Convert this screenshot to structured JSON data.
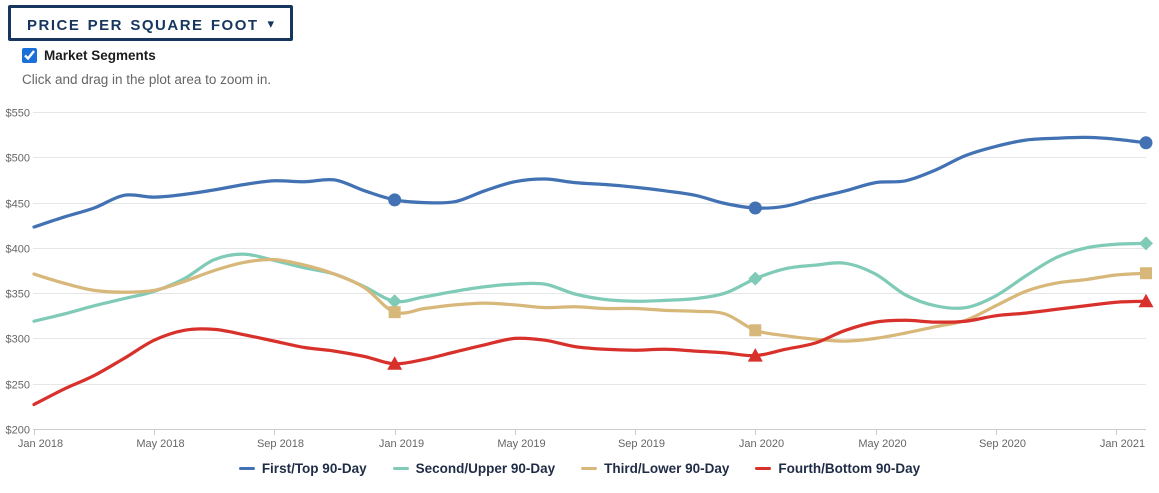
{
  "header": {
    "title": "Price Per Square Foot",
    "caret": "▾"
  },
  "controls": {
    "market_segments_label": "Market Segments",
    "market_segments_checked": true,
    "hint": "Click and drag in the plot area to zoom in."
  },
  "theme": {
    "title_navy": "#16365f",
    "checkbox_blue": "#1b6fd8",
    "axis_label_color": "#666666",
    "gridline_color": "#e6e6e6",
    "axis_line_color": "#cccccc",
    "legend_text_color": "#1f2c45",
    "background": "#ffffff"
  },
  "chart_data": {
    "type": "line",
    "title": "",
    "xlabel": "",
    "ylabel": "",
    "x_unit": "month",
    "x_start_label": "Jan 2018",
    "points_per_series": 38,
    "x_tick_labels": [
      "Jan 2018",
      "May 2018",
      "Sep 2018",
      "Jan 2019",
      "May 2019",
      "Sep 2019",
      "Jan 2020",
      "May 2020",
      "Sep 2020",
      "Jan 2021"
    ],
    "x_tick_indices": [
      0,
      4,
      8,
      12,
      16,
      20,
      24,
      28,
      32,
      36
    ],
    "ylim": [
      200,
      550
    ],
    "y_tick_step": 50,
    "y_tick_labels": [
      "$200",
      "$250",
      "$300",
      "$350",
      "$400",
      "$450",
      "$500",
      "$550"
    ],
    "grid": true,
    "legend_position": "bottom",
    "marker_point_indices": [
      12,
      24,
      37
    ],
    "series": [
      {
        "name": "First/Top 90-Day",
        "color": "#4272b4",
        "marker": "circle",
        "values": [
          423,
          434,
          444,
          458,
          456,
          459,
          464,
          470,
          474,
          473,
          475,
          463,
          453,
          450,
          451,
          463,
          473,
          476,
          472,
          470,
          467,
          463,
          458,
          449,
          444,
          446,
          455,
          463,
          472,
          474,
          486,
          502,
          512,
          519,
          521,
          522,
          520,
          516
        ]
      },
      {
        "name": "Second/Upper 90-Day",
        "color": "#80cbb7",
        "marker": "diamond",
        "values": [
          319,
          327,
          336,
          344,
          352,
          366,
          387,
          393,
          386,
          378,
          371,
          357,
          341,
          346,
          352,
          357,
          360,
          360,
          349,
          343,
          341,
          342,
          344,
          350,
          366,
          377,
          381,
          383,
          371,
          348,
          336,
          334,
          347,
          369,
          389,
          400,
          404,
          405
        ]
      },
      {
        "name": "Third/Lower 90-Day",
        "color": "#d7b87a",
        "marker": "square",
        "values": [
          371,
          361,
          353,
          351,
          353,
          363,
          375,
          384,
          387,
          381,
          371,
          356,
          329,
          333,
          337,
          339,
          337,
          334,
          335,
          333,
          333,
          331,
          330,
          327,
          309,
          303,
          299,
          297,
          300,
          306,
          313,
          320,
          336,
          352,
          361,
          365,
          370,
          372
        ]
      },
      {
        "name": "Fourth/Bottom 90-Day",
        "color": "#d8312c",
        "marker": "triangle",
        "values": [
          227,
          244,
          259,
          278,
          298,
          309,
          310,
          304,
          297,
          290,
          286,
          280,
          272,
          277,
          285,
          293,
          300,
          298,
          291,
          288,
          287,
          288,
          286,
          284,
          281,
          288,
          295,
          309,
          318,
          320,
          318,
          319,
          325,
          328,
          332,
          336,
          340,
          341
        ]
      }
    ]
  }
}
